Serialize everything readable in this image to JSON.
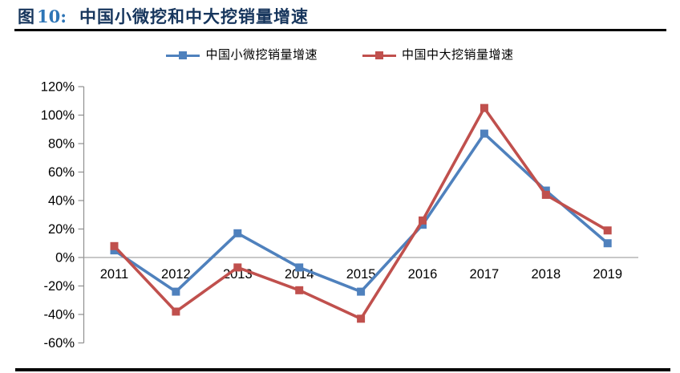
{
  "header": {
    "figure_char": "图",
    "figure_number": "10:",
    "title": "中国小微挖和中大挖销量增速"
  },
  "colors": {
    "figure_char_navy": "#17365d",
    "figure_number_blue": "#2e75b6",
    "title_navy": "#17365d",
    "axis_gray": "#8f8f8f",
    "zero_line_gray": "#a6a6a6",
    "divider_black": "#000000",
    "series_blue": "#4f81bd",
    "series_red": "#c0504d"
  },
  "chart_data": {
    "type": "line",
    "title": "中国小微挖和中大挖销量增速",
    "categories": [
      "2011",
      "2012",
      "2013",
      "2014",
      "2015",
      "2016",
      "2017",
      "2018",
      "2019"
    ],
    "series": [
      {
        "name": "中国小微挖销量增速",
        "color": "#4f81bd",
        "marker": "square",
        "values": [
          5,
          -24,
          17,
          -7,
          -24,
          23,
          87,
          47,
          10
        ]
      },
      {
        "name": "中国中大挖销量增速",
        "color": "#c0504d",
        "marker": "square",
        "values": [
          8,
          -38,
          -7,
          -23,
          -43,
          26,
          105,
          44,
          19
        ]
      }
    ],
    "xlabel": "",
    "ylabel": "",
    "ylim": [
      -60,
      120
    ],
    "ytick_step": 20,
    "ytick_labels": [
      "120%",
      "100%",
      "80%",
      "60%",
      "40%",
      "20%",
      "0%",
      "-20%",
      "-40%",
      "-60%"
    ],
    "grid": false,
    "legend_position": "top"
  }
}
